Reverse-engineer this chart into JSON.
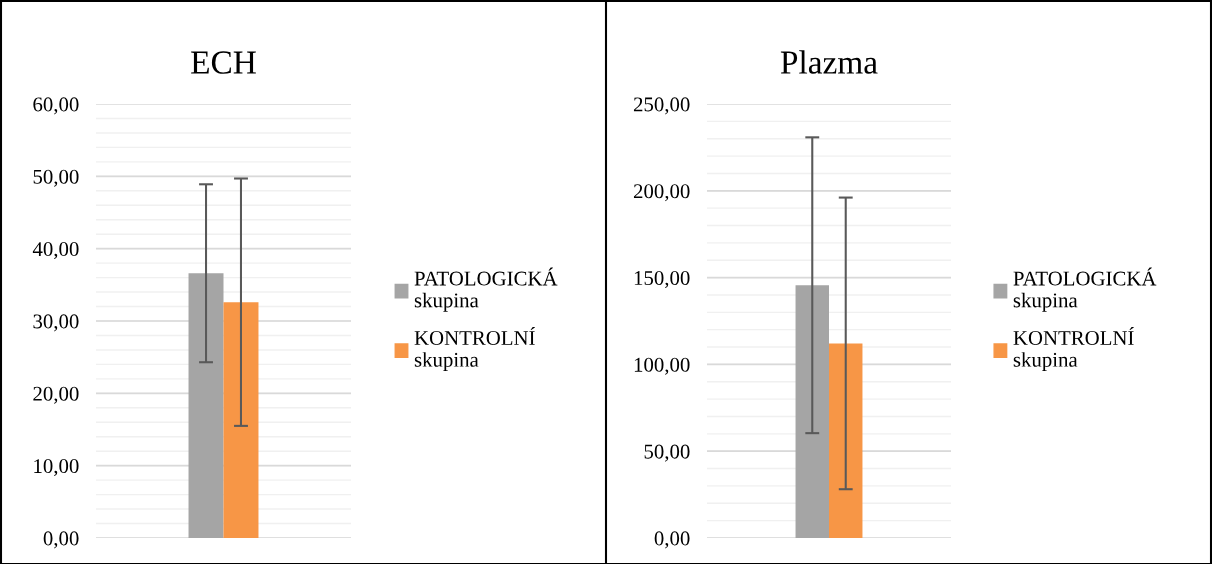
{
  "chart_data": [
    {
      "type": "bar",
      "title": "ECH",
      "categories": [
        null
      ],
      "series": [
        {
          "name": "PATOLOGICKÁ skupina",
          "color": "#a5a5a5",
          "values": [
            36.6
          ],
          "errors": [
            12.3
          ]
        },
        {
          "name": "KONTROLNÍ skupina",
          "color": "#f79646",
          "values": [
            32.6
          ],
          "errors": [
            17.1
          ]
        }
      ],
      "ylim": [
        0,
        60
      ],
      "yticks": [
        {
          "value": 0,
          "label": "0,00"
        },
        {
          "value": 10,
          "label": "10,00"
        },
        {
          "value": 20,
          "label": "20,00"
        },
        {
          "value": 30,
          "label": "30,00"
        },
        {
          "value": 40,
          "label": "40,00"
        },
        {
          "value": 50,
          "label": "50,00"
        },
        {
          "value": 60,
          "label": "60,00"
        }
      ],
      "grid": "y",
      "legend": "right"
    },
    {
      "type": "bar",
      "title": "Plazma",
      "categories": [
        null
      ],
      "series": [
        {
          "name": "PATOLOGICKÁ skupina",
          "color": "#a5a5a5",
          "values": [
            145.6
          ],
          "errors": [
            85.2
          ]
        },
        {
          "name": "KONTROLNÍ skupina",
          "color": "#f79646",
          "values": [
            112.1
          ],
          "errors": [
            84
          ]
        }
      ],
      "ylim": [
        0,
        250
      ],
      "yticks": [
        {
          "value": 0,
          "label": "0,00"
        },
        {
          "value": 50,
          "label": "50,00"
        },
        {
          "value": 100,
          "label": "100,00"
        },
        {
          "value": 150,
          "label": "150,00"
        },
        {
          "value": 200,
          "label": "200,00"
        },
        {
          "value": 250,
          "label": "250,00"
        }
      ],
      "grid": "y",
      "legend": "right"
    }
  ]
}
